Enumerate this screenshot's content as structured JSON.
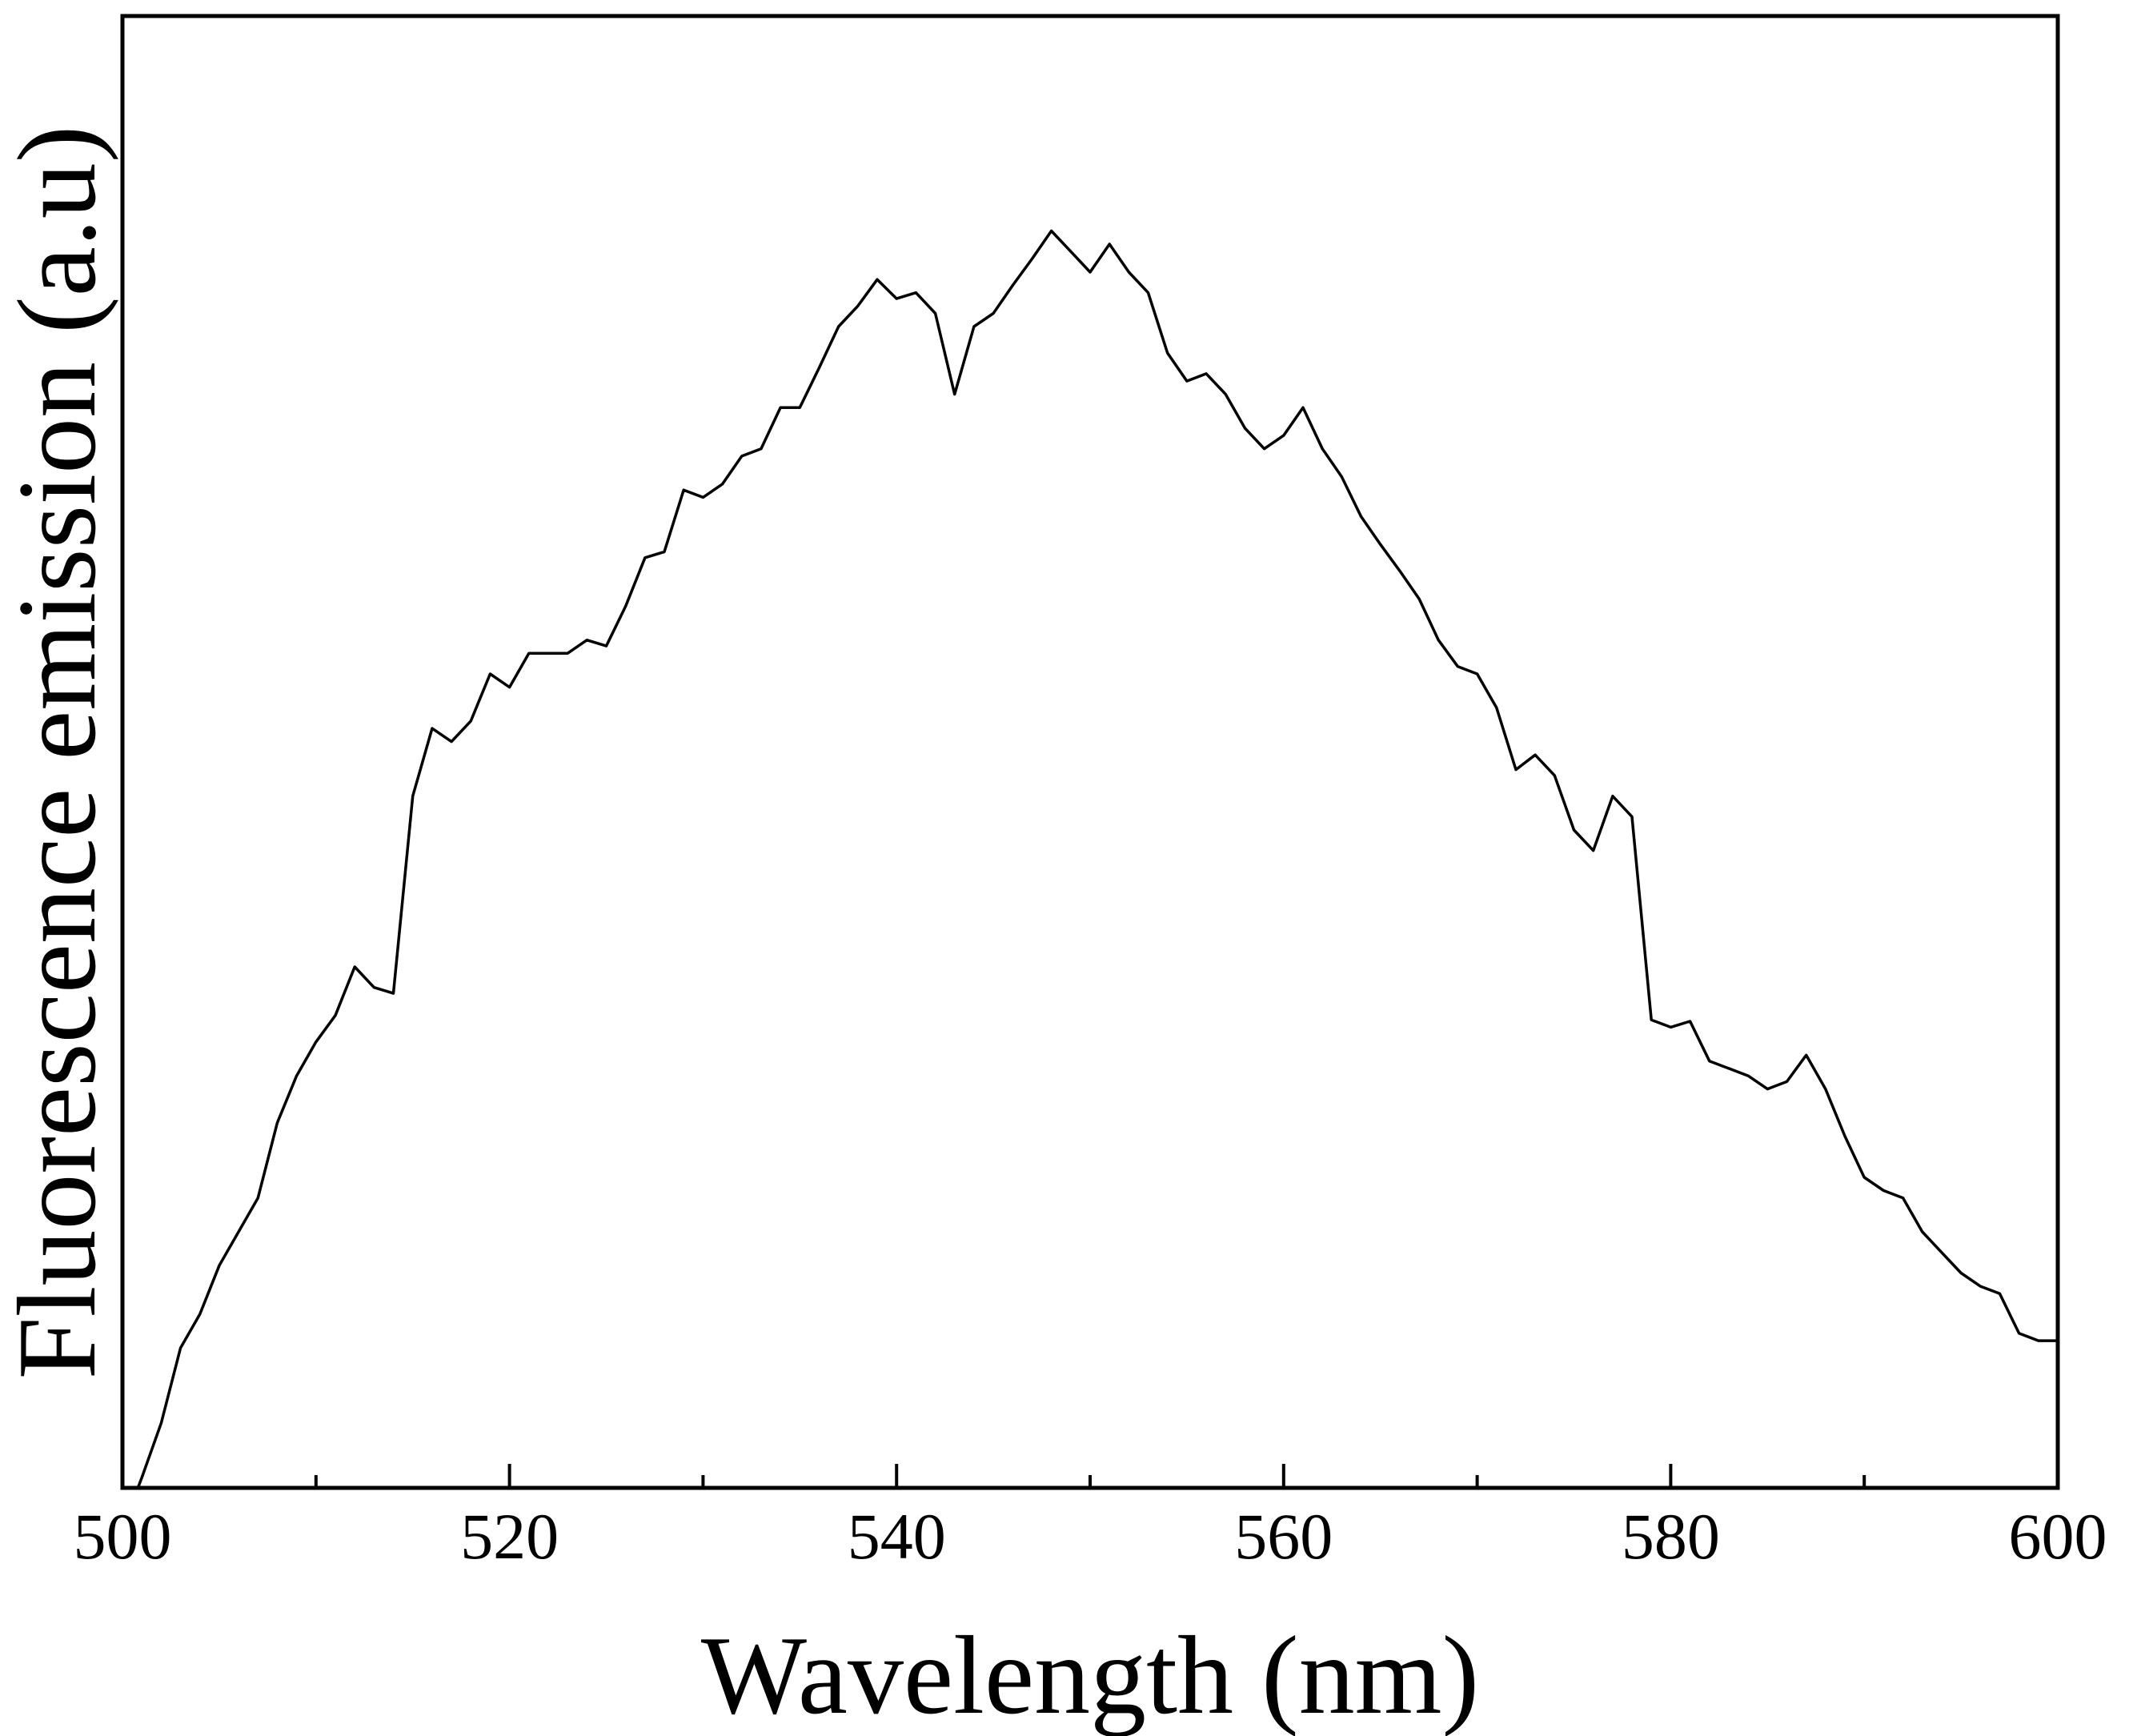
{
  "chart_data": {
    "type": "line",
    "xlabel": "Wavelength (nm)",
    "ylabel": "Fluorescence emission (a.u)",
    "xlim": [
      500,
      600
    ],
    "xticks": [
      500,
      520,
      540,
      560,
      580,
      600
    ],
    "xminor_ticks": [
      510,
      530,
      550,
      570,
      590
    ],
    "ylim": [
      0,
      100
    ],
    "grid": false,
    "series": [
      {
        "color": "#000000",
        "x": [
          500.8,
          501,
          502,
          503,
          504,
          505,
          506,
          507,
          508,
          509,
          510,
          511,
          512,
          513,
          514,
          515,
          516,
          517,
          518,
          519,
          520,
          521,
          522,
          523,
          524,
          525,
          526,
          527,
          528,
          529,
          530,
          531,
          532,
          533,
          534,
          535,
          536,
          537,
          538,
          539,
          540,
          541,
          542,
          543,
          544,
          545,
          546,
          547,
          548,
          549,
          550,
          551,
          552,
          553,
          554,
          555,
          556,
          557,
          558,
          559,
          560,
          561,
          562,
          563,
          564,
          565,
          566,
          567,
          568,
          569,
          570,
          571,
          572,
          573,
          574,
          575,
          576,
          577,
          578,
          579,
          580,
          581,
          582,
          583,
          584,
          585,
          586,
          587,
          588,
          589,
          590,
          591,
          592,
          593,
          594,
          595,
          596,
          597,
          598,
          599,
          600
        ],
        "values": [
          0,
          0.7,
          4.4,
          9.5,
          11.8,
          15.1,
          17.4,
          19.7,
          24.8,
          28.0,
          30.3,
          32.1,
          35.4,
          34.0,
          33.6,
          47.0,
          51.6,
          50.7,
          52.1,
          55.3,
          54.4,
          56.7,
          56.7,
          56.7,
          57.6,
          57.2,
          59.9,
          63.2,
          63.6,
          67.8,
          67.3,
          68.2,
          70.1,
          70.6,
          73.4,
          73.4,
          76.1,
          78.9,
          80.3,
          82.1,
          80.8,
          81.2,
          79.8,
          74.3,
          78.9,
          79.8,
          81.7,
          83.5,
          85.4,
          84.0,
          82.6,
          84.5,
          82.6,
          81.2,
          77.1,
          75.2,
          75.7,
          74.3,
          72.0,
          70.6,
          71.5,
          73.4,
          70.6,
          68.7,
          66.0,
          64.1,
          62.3,
          60.4,
          57.6,
          55.8,
          55.3,
          53.0,
          48.8,
          49.8,
          48.4,
          44.7,
          43.3,
          47.0,
          45.6,
          31.8,
          31.3,
          31.7,
          29.0,
          28.5,
          28.0,
          27.1,
          27.6,
          29.4,
          27.1,
          23.9,
          21.1,
          20.2,
          19.7,
          17.4,
          16.0,
          14.6,
          13.7,
          13.2,
          10.5,
          10.0,
          10.0
        ]
      }
    ]
  }
}
